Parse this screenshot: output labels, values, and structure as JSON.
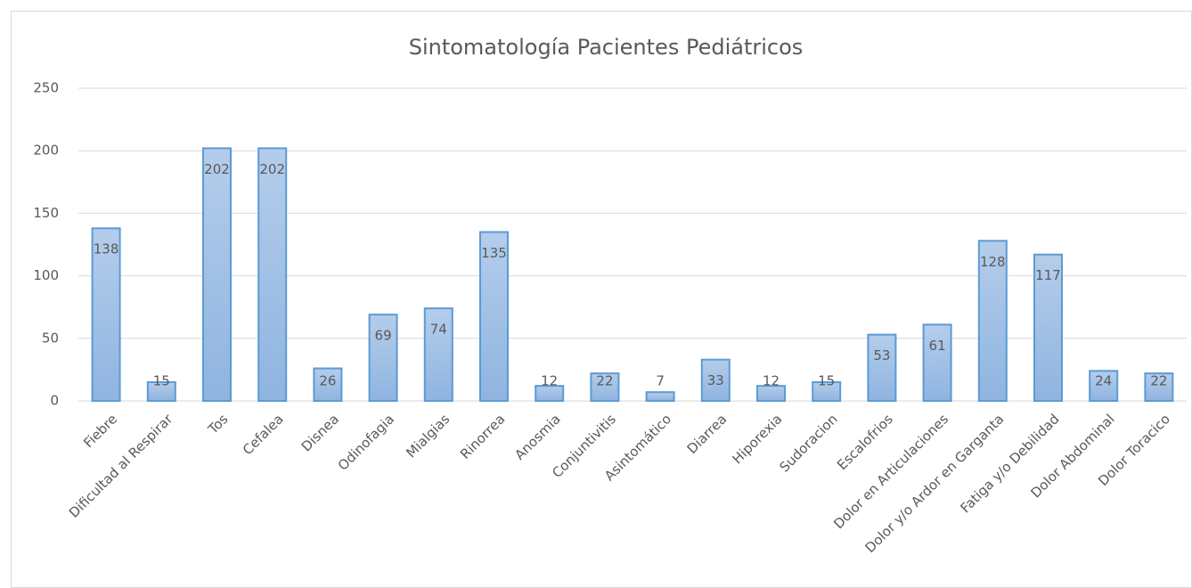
{
  "chart_data": {
    "type": "bar",
    "title": "Sintomatología Pacientes Pediátricos",
    "categories": [
      "Fiebre",
      "Dificultad al Respirar",
      "Tos",
      "Cefalea",
      "Disnea",
      "Odinofagia",
      "Mialgias",
      "Rinorrea",
      "Anosmia",
      "Conjuntivitis",
      "Asintomático",
      "Diarrea",
      "Hiporexia",
      "Sudoracion",
      "Escalofrios",
      "Dolor en Articulaciones",
      "Dolor y/o Ardor en Garganta",
      "Fatiga y/o Debilidad",
      "Dolor Abdominal",
      "Dolor Toracico"
    ],
    "values": [
      138,
      15,
      202,
      202,
      26,
      69,
      74,
      135,
      12,
      22,
      7,
      33,
      12,
      15,
      53,
      61,
      128,
      117,
      24,
      22
    ],
    "color": "#5b9bd5",
    "ylim": [
      0,
      250
    ],
    "yticks": [
      0,
      50,
      100,
      150,
      200,
      250
    ],
    "grid": true
  }
}
